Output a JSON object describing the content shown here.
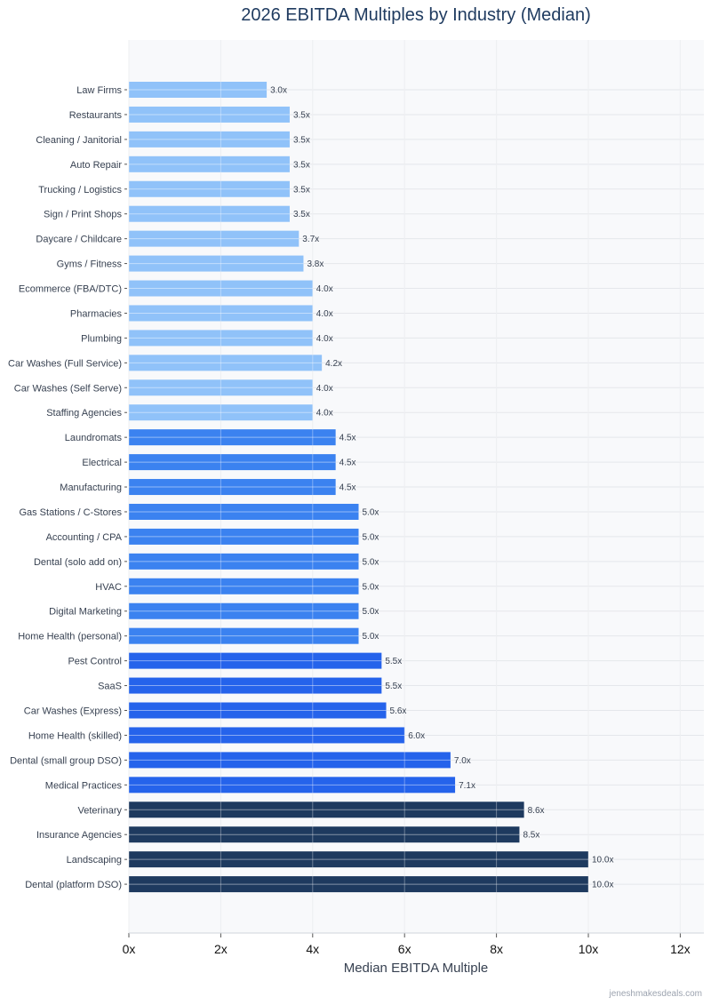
{
  "chart_data": {
    "type": "bar",
    "orientation": "horizontal",
    "title": "2026 EBITDA Multiples by Industry (Median)",
    "xlabel": "Median EBITDA Multiple",
    "ylabel": "",
    "xlim": [
      0,
      12.5
    ],
    "xticks": [
      0,
      2,
      4,
      6,
      8,
      10,
      12
    ],
    "xtick_labels": [
      "0x",
      "2x",
      "4x",
      "6x",
      "8x",
      "10x",
      "12x"
    ],
    "grid": true,
    "categories": [
      "Law Firms",
      "Restaurants",
      "Cleaning / Janitorial",
      "Auto Repair",
      "Trucking / Logistics",
      "Sign / Print Shops",
      "Daycare / Childcare",
      "Gyms / Fitness",
      "Ecommerce (FBA/DTC)",
      "Pharmacies",
      "Plumbing",
      "Car Washes (Full Service)",
      "Car Washes (Self Serve)",
      "Staffing Agencies",
      "Laundromats",
      "Electrical",
      "Manufacturing",
      "Gas Stations / C-Stores",
      "Accounting / CPA",
      "Dental (solo add on)",
      "HVAC",
      "Digital Marketing",
      "Home Health (personal)",
      "Pest Control",
      "SaaS",
      "Car Washes (Express)",
      "Home Health (skilled)",
      "Dental (small group DSO)",
      "Medical Practices",
      "Veterinary",
      "Insurance Agencies",
      "Landscaping",
      "Dental (platform DSO)"
    ],
    "values": [
      3.0,
      3.5,
      3.5,
      3.5,
      3.5,
      3.5,
      3.7,
      3.8,
      4.0,
      4.0,
      4.0,
      4.2,
      4.0,
      4.0,
      4.5,
      4.5,
      4.5,
      5.0,
      5.0,
      5.0,
      5.0,
      5.0,
      5.0,
      5.5,
      5.5,
      5.6,
      6.0,
      7.0,
      7.1,
      8.6,
      8.5,
      10.0,
      10.0
    ],
    "data_labels": [
      "3.0x",
      "3.5x",
      "3.5x",
      "3.5x",
      "3.5x",
      "3.5x",
      "3.7x",
      "3.8x",
      "4.0x",
      "4.0x",
      "4.0x",
      "4.2x",
      "4.0x",
      "4.0x",
      "4.5x",
      "4.5x",
      "4.5x",
      "5.0x",
      "5.0x",
      "5.0x",
      "5.0x",
      "5.0x",
      "5.0x",
      "5.5x",
      "5.5x",
      "5.6x",
      "6.0x",
      "7.0x",
      "7.1x",
      "8.6x",
      "8.5x",
      "10.0x",
      "10.0x"
    ],
    "tiers": [
      0,
      0,
      0,
      0,
      0,
      0,
      0,
      0,
      0,
      0,
      0,
      0,
      0,
      0,
      1,
      1,
      1,
      1,
      1,
      1,
      1,
      1,
      1,
      2,
      2,
      2,
      2,
      2,
      2,
      3,
      3,
      3,
      3
    ],
    "tier_colors": [
      "#90c2f9",
      "#3b82f0",
      "#2563eb",
      "#1e3a5f"
    ]
  },
  "watermark": "jeneshmakesdeals.com"
}
